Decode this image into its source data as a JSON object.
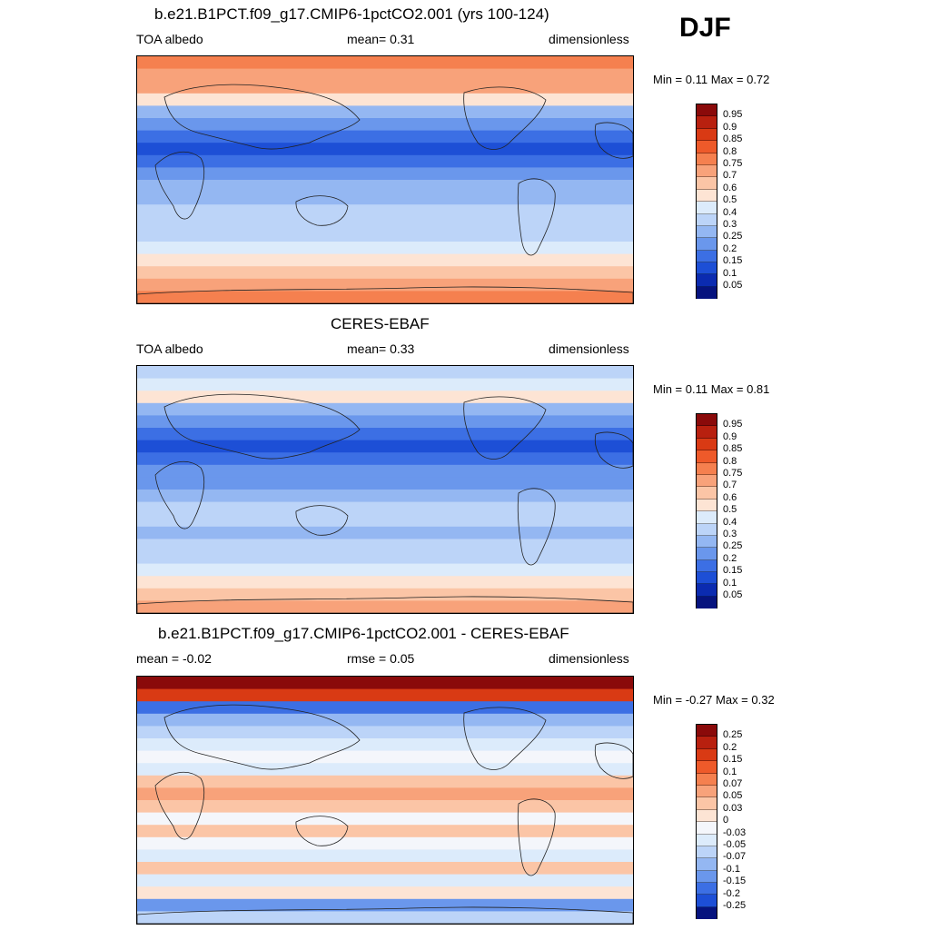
{
  "season": "DJF",
  "panels": [
    {
      "title": "b.e21.B1PCT.f09_g17.CMIP6-1pctCO2.001 (yrs 100-124)",
      "left_label": "TOA albedo",
      "center_label": "mean=   0.31",
      "right_label": "dimensionless",
      "minmax": "Min =   0.11 Max =   0.72",
      "colorbar": {
        "labels": [
          "0.95",
          "0.9",
          "0.85",
          "0.8",
          "0.75",
          "0.7",
          "0.6",
          "0.5",
          "0.4",
          "0.3",
          "0.25",
          "0.2",
          "0.15",
          "0.1",
          "0.05"
        ],
        "colors": [
          "#8a0a0a",
          "#b8200f",
          "#d93a14",
          "#ee5a2a",
          "#f5804f",
          "#f8a27a",
          "#fbc5a6",
          "#fde4d4",
          "#dcebfb",
          "#bcd4f8",
          "#94b7f2",
          "#6a97ec",
          "#3c6fe4",
          "#1d4fd6",
          "#0b2bb0",
          "#06137e"
        ]
      },
      "bands": [
        4,
        5,
        5,
        7,
        10,
        11,
        12,
        13,
        12,
        11,
        10,
        10,
        9,
        9,
        9,
        8,
        7,
        6,
        5,
        4
      ]
    },
    {
      "title": "CERES-EBAF",
      "left_label": "TOA albedo",
      "center_label": "mean=   0.33",
      "right_label": "dimensionless",
      "minmax": "Min =   0.11 Max =   0.81",
      "colorbar": {
        "labels": [
          "0.95",
          "0.9",
          "0.85",
          "0.8",
          "0.75",
          "0.7",
          "0.6",
          "0.5",
          "0.4",
          "0.3",
          "0.25",
          "0.2",
          "0.15",
          "0.1",
          "0.05"
        ],
        "colors": [
          "#8a0a0a",
          "#b8200f",
          "#d93a14",
          "#ee5a2a",
          "#f5804f",
          "#f8a27a",
          "#fbc5a6",
          "#fde4d4",
          "#dcebfb",
          "#bcd4f8",
          "#94b7f2",
          "#6a97ec",
          "#3c6fe4",
          "#1d4fd6",
          "#0b2bb0",
          "#06137e"
        ]
      },
      "bands": [
        9,
        8,
        7,
        10,
        11,
        12,
        13,
        12,
        11,
        11,
        10,
        9,
        9,
        10,
        9,
        9,
        8,
        7,
        6,
        5
      ]
    },
    {
      "title": "b.e21.B1PCT.f09_g17.CMIP6-1pctCO2.001 - CERES-EBAF",
      "left_label": "mean =  -0.02",
      "center_label": "rmse =   0.05",
      "right_label": "dimensionless",
      "minmax": "Min =  -0.27 Max =   0.32",
      "colorbar": {
        "labels": [
          "0.25",
          "0.2",
          "0.15",
          "0.1",
          "0.07",
          "0.05",
          "0.03",
          "0",
          "-0.03",
          "-0.05",
          "-0.07",
          "-0.1",
          "-0.15",
          "-0.2",
          "-0.25"
        ],
        "colors": [
          "#8a0a0a",
          "#b8200f",
          "#d93a14",
          "#ee5a2a",
          "#f5804f",
          "#f8a27a",
          "#fbc5a6",
          "#fde4d4",
          "#f4f6fb",
          "#dcebfb",
          "#bcd4f8",
          "#94b7f2",
          "#6a97ec",
          "#3c6fe4",
          "#1d4fd6",
          "#06137e"
        ]
      },
      "bands": [
        0,
        2,
        13,
        11,
        10,
        9,
        8,
        9,
        6,
        5,
        6,
        8,
        6,
        8,
        9,
        6,
        9,
        7,
        12,
        10
      ]
    }
  ]
}
